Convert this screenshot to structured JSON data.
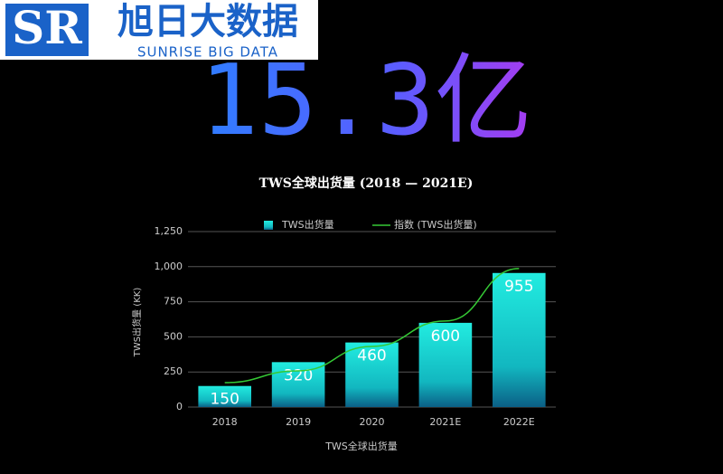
{
  "logo": {
    "mark": "SR",
    "name": "旭日大数据",
    "tagline": "SUNRISE BIG DATA"
  },
  "headline": "15.3亿",
  "chart_data": {
    "type": "bar",
    "title": "TWS全球出货量 (2018 — 2021E)",
    "x_label": "TWS全球出货量",
    "y_label": "TWS出货量 (KK)",
    "categories": [
      "2018",
      "2019",
      "2020",
      "2021E",
      "2022E"
    ],
    "series": [
      {
        "name": "TWS出货量",
        "type": "bar",
        "color": "#22ece0",
        "values": [
          150,
          320,
          460,
          600,
          955
        ]
      },
      {
        "name": "指数 (TWS出货量)",
        "type": "line",
        "color": "#35c935",
        "values": [
          174,
          258,
          432,
          613,
          987
        ]
      }
    ],
    "ylim": [
      0,
      1250
    ],
    "yticks": [
      0,
      250,
      500,
      750,
      {
        "value": 1000,
        "label": "1,000"
      },
      {
        "value": 1250,
        "label": "1,250"
      }
    ],
    "grid": true
  }
}
